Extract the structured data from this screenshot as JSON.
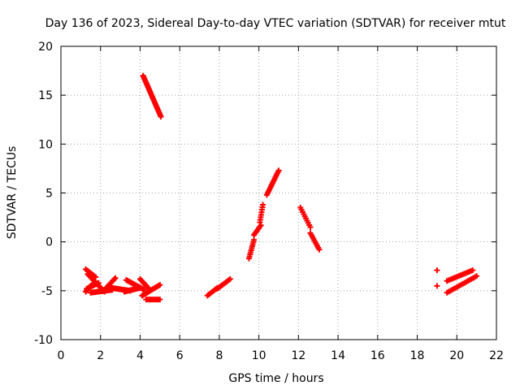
{
  "chart_data": {
    "type": "scatter",
    "title": "Day 136 of 2023, Sidereal Day-to-day VTEC variation (SDTVAR) for receiver mtut",
    "xlabel": "GPS time / hours",
    "ylabel": "SDTVAR / TECUs",
    "xlim": [
      0,
      22
    ],
    "ylim": [
      -10,
      20
    ],
    "xticks": [
      0,
      2,
      4,
      6,
      8,
      10,
      12,
      14,
      16,
      18,
      20,
      22
    ],
    "yticks": [
      -10,
      -5,
      0,
      5,
      10,
      15,
      20
    ],
    "xtick_labels": [
      "0",
      "2",
      "4",
      "6",
      "8",
      "10",
      "12",
      "14",
      "16",
      "18",
      "20",
      "22"
    ],
    "ytick_labels": [
      "-10",
      "-5",
      "0",
      "5",
      "10",
      "15",
      "20"
    ],
    "grid": true,
    "marker": "+",
    "marker_color": "#ff0000",
    "series": [
      {
        "name": "SDTVAR",
        "segments": [
          {
            "x_start": 1.25,
            "x_end": 1.55,
            "y_start": -5.1,
            "y_end": -4.4,
            "n": 8
          },
          {
            "x_start": 1.25,
            "x_end": 1.75,
            "y_start": -2.8,
            "y_end": -3.6,
            "n": 8
          },
          {
            "x_start": 1.35,
            "x_end": 2.2,
            "y_start": -3.3,
            "y_end": -5.1,
            "n": 18
          },
          {
            "x_start": 1.3,
            "x_end": 1.9,
            "y_start": -4.8,
            "y_end": -4.2,
            "n": 10
          },
          {
            "x_start": 1.5,
            "x_end": 2.6,
            "y_start": -5.2,
            "y_end": -4.9,
            "n": 20
          },
          {
            "x_start": 2.2,
            "x_end": 2.75,
            "y_start": -4.9,
            "y_end": -3.7,
            "n": 12
          },
          {
            "x_start": 2.5,
            "x_end": 3.5,
            "y_start": -4.7,
            "y_end": -5.0,
            "n": 20
          },
          {
            "x_start": 3.3,
            "x_end": 4.2,
            "y_start": -3.9,
            "y_end": -4.9,
            "n": 16
          },
          {
            "x_start": 3.2,
            "x_end": 4.0,
            "y_start": -5.1,
            "y_end": -4.7,
            "n": 14
          },
          {
            "x_start": 4.0,
            "x_end": 4.4,
            "y_start": -3.8,
            "y_end": -4.7,
            "n": 8
          },
          {
            "x_start": 4.1,
            "x_end": 5.0,
            "y_start": -5.5,
            "y_end": -4.4,
            "n": 16
          },
          {
            "x_start": 4.3,
            "x_end": 5.0,
            "y_start": -5.9,
            "y_end": -5.9,
            "n": 10
          },
          {
            "x_start": 4.15,
            "x_end": 5.05,
            "y_start": 17.0,
            "y_end": 12.8,
            "n": 30
          },
          {
            "x_start": 7.4,
            "x_end": 7.9,
            "y_start": -5.5,
            "y_end": -4.7,
            "n": 8
          },
          {
            "x_start": 7.9,
            "x_end": 8.55,
            "y_start": -4.8,
            "y_end": -3.8,
            "n": 10
          },
          {
            "x_start": 9.5,
            "x_end": 9.75,
            "y_start": -1.7,
            "y_end": 0.2,
            "n": 10
          },
          {
            "x_start": 9.75,
            "x_end": 10.1,
            "y_start": 0.7,
            "y_end": 1.7,
            "n": 8
          },
          {
            "x_start": 10.05,
            "x_end": 10.2,
            "y_start": 2.0,
            "y_end": 3.8,
            "n": 8
          },
          {
            "x_start": 10.4,
            "x_end": 11.0,
            "y_start": 4.8,
            "y_end": 7.3,
            "n": 16
          },
          {
            "x_start": 12.1,
            "x_end": 12.6,
            "y_start": 3.5,
            "y_end": 1.5,
            "n": 10
          },
          {
            "x_start": 12.6,
            "x_end": 13.05,
            "y_start": 0.9,
            "y_end": -0.8,
            "n": 10
          },
          {
            "x_start": 19.0,
            "x_end": 19.0,
            "y_start": -2.9,
            "y_end": -2.9,
            "n": 1
          },
          {
            "x_start": 19.0,
            "x_end": 19.0,
            "y_start": -4.5,
            "y_end": -4.5,
            "n": 1
          },
          {
            "x_start": 19.5,
            "x_end": 20.8,
            "y_start": -4.0,
            "y_end": -2.9,
            "n": 16
          },
          {
            "x_start": 19.5,
            "x_end": 21.0,
            "y_start": -5.2,
            "y_end": -3.5,
            "n": 18
          }
        ]
      }
    ]
  }
}
